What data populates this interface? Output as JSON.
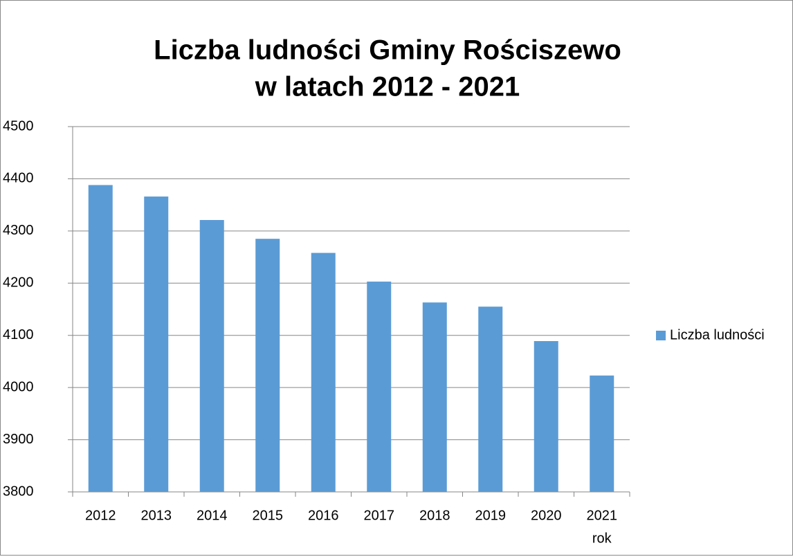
{
  "chart_data": {
    "type": "bar",
    "title": [
      "Liczba ludności Gminy Rościszewo",
      "w latach 2012 - 2021"
    ],
    "x_label": "rok",
    "categories": [
      "2012",
      "2013",
      "2014",
      "2015",
      "2016",
      "2017",
      "2018",
      "2019",
      "2020",
      "2021"
    ],
    "series": [
      {
        "name": "Liczba ludności",
        "color": "#5b9bd5",
        "values": [
          4388,
          4366,
          4321,
          4285,
          4258,
          4203,
          4163,
          4155,
          4089,
          4023
        ]
      }
    ],
    "ylim": [
      3800,
      4500
    ],
    "yticks": [
      3800,
      3900,
      4000,
      4100,
      4200,
      4300,
      4400,
      4500
    ],
    "grid": true,
    "legend": "right"
  }
}
